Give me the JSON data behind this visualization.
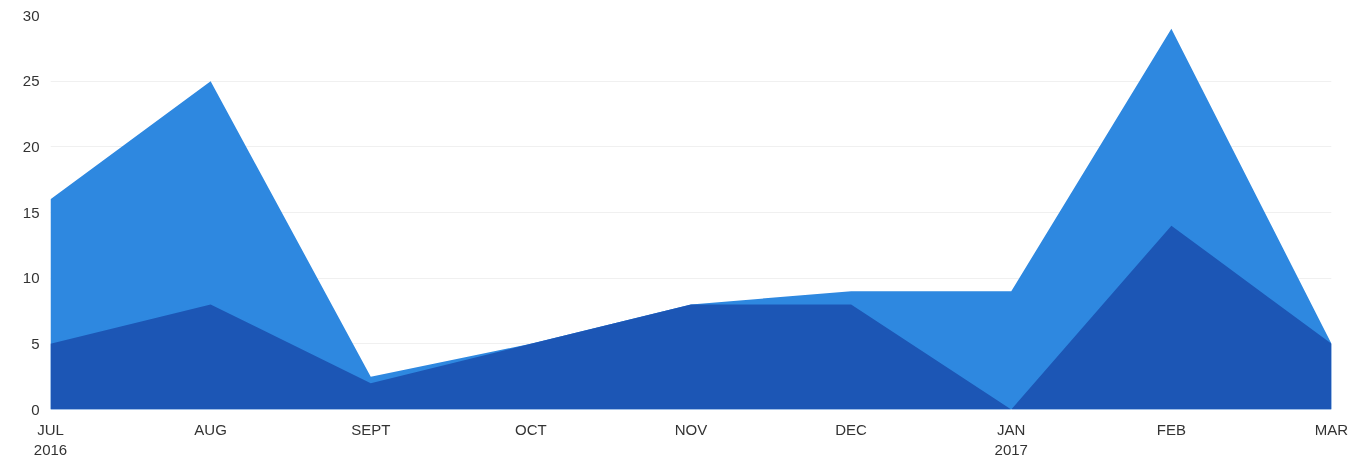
{
  "chart_data": {
    "type": "area",
    "categories": [
      "JUL\n2016",
      "AUG",
      "SEPT",
      "OCT",
      "NOV",
      "DEC",
      "JAN\n2017",
      "FEB",
      "MAR"
    ],
    "series": [
      {
        "color": "#2e88e0",
        "values": [
          16,
          25,
          2.5,
          5,
          8,
          9,
          9,
          29,
          5
        ]
      },
      {
        "color": "#1c56b5",
        "values": [
          5,
          8,
          2,
          5,
          8,
          8,
          0,
          14,
          5
        ]
      }
    ],
    "ylim": [
      0,
      30
    ],
    "yticks": [
      0,
      5,
      10,
      15,
      20,
      25,
      30
    ],
    "grid": "y"
  }
}
